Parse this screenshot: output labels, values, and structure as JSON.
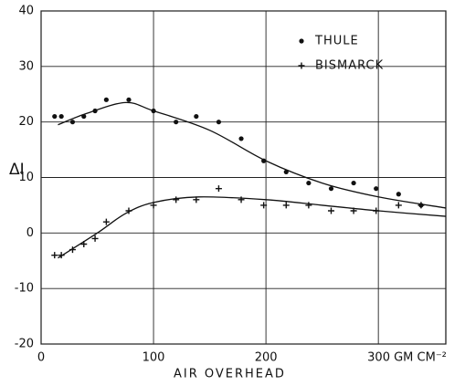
{
  "chart_data": {
    "type": "scatter",
    "xlabel": "AIR OVERHEAD",
    "ylabel": "ΔI",
    "xlim": [
      0,
      360
    ],
    "ylim": [
      -20,
      40
    ],
    "xticks": [
      0,
      100,
      200,
      {
        "value": 300,
        "label": "300 GM CM⁻²"
      }
    ],
    "yticks": [
      -20,
      -10,
      0,
      10,
      20,
      30,
      40
    ],
    "grid": true,
    "legend": "upper right",
    "series": [
      {
        "name": "THULE",
        "marker": "dot",
        "color": "#111",
        "x": [
          12,
          18,
          28,
          38,
          48,
          58,
          78,
          100,
          120,
          138,
          158,
          178,
          198,
          218,
          238,
          258,
          278,
          298,
          318,
          338
        ],
        "values": [
          21,
          21,
          20,
          21,
          22,
          24,
          24,
          22,
          20,
          21,
          20,
          17,
          13,
          11,
          9,
          8,
          9,
          8,
          7,
          5
        ]
      },
      {
        "name": "BISMARCK",
        "marker": "plus",
        "color": "#111",
        "x": [
          12,
          18,
          28,
          38,
          48,
          58,
          78,
          100,
          120,
          138,
          158,
          178,
          198,
          218,
          238,
          258,
          278,
          298,
          318,
          338
        ],
        "values": [
          -4,
          -4,
          -3,
          -2,
          -1,
          2,
          4,
          5,
          6,
          6,
          8,
          6,
          5,
          5,
          5,
          4,
          4,
          4,
          5,
          5
        ]
      }
    ],
    "lines": [
      {
        "color": "#111",
        "x": [
          15,
          40,
          75,
          100,
          150,
          200,
          250,
          300,
          360
        ],
        "values": [
          19.5,
          21.5,
          23.5,
          22,
          18.5,
          13,
          9,
          6.5,
          4.5
        ]
      },
      {
        "color": "#111",
        "x": [
          15,
          50,
          75,
          100,
          140,
          200,
          250,
          300,
          360
        ],
        "values": [
          -4.5,
          0,
          3.5,
          5.5,
          6.5,
          6,
          5,
          4,
          3
        ]
      }
    ]
  }
}
